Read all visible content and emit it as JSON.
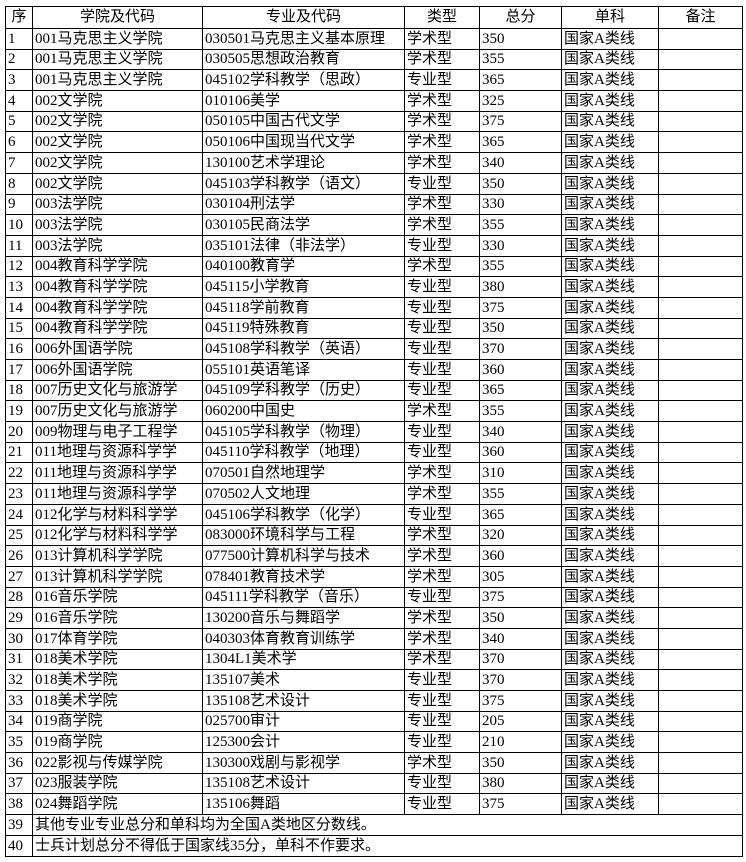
{
  "header": {
    "seq": "序",
    "college": "学院及代码",
    "major": "专业及代码",
    "type": "类型",
    "total": "总分",
    "single": "单科",
    "remark": "备注"
  },
  "rows": [
    [
      "1",
      "001马克思主义学院",
      "030501马克思主义基本原理",
      "学术型",
      "350",
      "国家A类线",
      ""
    ],
    [
      "2",
      "001马克思主义学院",
      "030505思想政治教育",
      "学术型",
      "355",
      "国家A类线",
      ""
    ],
    [
      "3",
      "001马克思主义学院",
      "045102学科教学（思政）",
      "专业型",
      "365",
      "国家A类线",
      ""
    ],
    [
      "4",
      "002文学院",
      "010106美学",
      "学术型",
      "325",
      "国家A类线",
      ""
    ],
    [
      "5",
      "002文学院",
      "050105中国古代文学",
      "学术型",
      "375",
      "国家A类线",
      ""
    ],
    [
      "6",
      "002文学院",
      "050106中国现当代文学",
      "学术型",
      "365",
      "国家A类线",
      ""
    ],
    [
      "7",
      "002文学院",
      "130100艺术学理论",
      "学术型",
      "340",
      "国家A类线",
      ""
    ],
    [
      "8",
      "002文学院",
      "045103学科教学（语文）",
      "专业型",
      "350",
      "国家A类线",
      ""
    ],
    [
      "9",
      "003法学院",
      "030104刑法学",
      "学术型",
      "330",
      "国家A类线",
      ""
    ],
    [
      "10",
      "003法学院",
      "030105民商法学",
      "学术型",
      "355",
      "国家A类线",
      ""
    ],
    [
      "11",
      "003法学院",
      "035101法律（非法学）",
      "专业型",
      "330",
      "国家A类线",
      ""
    ],
    [
      "12",
      "004教育科学学院",
      "040100教育学",
      "学术型",
      "355",
      "国家A类线",
      ""
    ],
    [
      "13",
      "004教育科学学院",
      "045115小学教育",
      "专业型",
      "380",
      "国家A类线",
      ""
    ],
    [
      "14",
      "004教育科学学院",
      "045118学前教育",
      "专业型",
      "375",
      "国家A类线",
      ""
    ],
    [
      "15",
      "004教育科学学院",
      "045119特殊教育",
      "专业型",
      "350",
      "国家A类线",
      ""
    ],
    [
      "16",
      "006外国语学院",
      "045108学科教学（英语）",
      "专业型",
      "370",
      "国家A类线",
      ""
    ],
    [
      "17",
      "006外国语学院",
      "055101英语笔译",
      "专业型",
      "360",
      "国家A类线",
      ""
    ],
    [
      "18",
      "007历史文化与旅游学",
      "045109学科教学（历史）",
      "专业型",
      "365",
      "国家A类线",
      ""
    ],
    [
      "19",
      "007历史文化与旅游学",
      "060200中国史",
      "学术型",
      "355",
      "国家A类线",
      ""
    ],
    [
      "20",
      "009物理与电子工程学",
      "045105学科教学（物理）",
      "专业型",
      "340",
      "国家A类线",
      ""
    ],
    [
      "21",
      "011地理与资源科学学",
      "045110学科教学（地理）",
      "专业型",
      "360",
      "国家A类线",
      ""
    ],
    [
      "22",
      "011地理与资源科学学",
      "070501自然地理学",
      "学术型",
      "310",
      "国家A类线",
      ""
    ],
    [
      "23",
      "011地理与资源科学学",
      "070502人文地理",
      "学术型",
      "355",
      "国家A类线",
      ""
    ],
    [
      "24",
      "012化学与材料科学学",
      "045106学科教学（化学）",
      "专业型",
      "365",
      "国家A类线",
      ""
    ],
    [
      "25",
      "012化学与材料科学学",
      "083000环境科学与工程",
      "学术型",
      "320",
      "国家A类线",
      ""
    ],
    [
      "26",
      "013计算机科学学院",
      "077500计算机科学与技术",
      "学术型",
      "360",
      "国家A类线",
      ""
    ],
    [
      "27",
      "013计算机科学学院",
      "078401教育技术学",
      "学术型",
      "305",
      "国家A类线",
      ""
    ],
    [
      "28",
      "016音乐学院",
      "045111学科教学（音乐）",
      "专业型",
      "375",
      "国家A类线",
      ""
    ],
    [
      "29",
      "016音乐学院",
      "130200音乐与舞蹈学",
      "学术型",
      "350",
      "国家A类线",
      ""
    ],
    [
      "30",
      "017体育学院",
      "040303体育教育训练学",
      "学术型",
      "340",
      "国家A类线",
      ""
    ],
    [
      "31",
      "018美术学院",
      "1304L1美术学",
      "学术型",
      "370",
      "国家A类线",
      ""
    ],
    [
      "32",
      "018美术学院",
      "135107美术",
      "专业型",
      "370",
      "国家A类线",
      ""
    ],
    [
      "33",
      "018美术学院",
      "135108艺术设计",
      "专业型",
      "375",
      "国家A类线",
      ""
    ],
    [
      "34",
      "019商学院",
      "025700审计",
      "专业型",
      "205",
      "国家A类线",
      ""
    ],
    [
      "35",
      "019商学院",
      "125300会计",
      "专业型",
      "210",
      "国家A类线",
      ""
    ],
    [
      "36",
      "022影视与传媒学院",
      "130300戏剧与影视学",
      "学术型",
      "350",
      "国家A类线",
      ""
    ],
    [
      "37",
      "023服装学院",
      "135108艺术设计",
      "专业型",
      "380",
      "国家A类线",
      ""
    ],
    [
      "38",
      "024舞蹈学院",
      "135106舞蹈",
      "专业型",
      "375",
      "国家A类线",
      ""
    ]
  ],
  "notes": [
    {
      "seq": "39",
      "text": "其他专业专业总分和单科均为全国A类地区分数线。"
    },
    {
      "seq": "40",
      "text": "士兵计划总分不得低于国家线35分，单科不作要求。"
    }
  ]
}
